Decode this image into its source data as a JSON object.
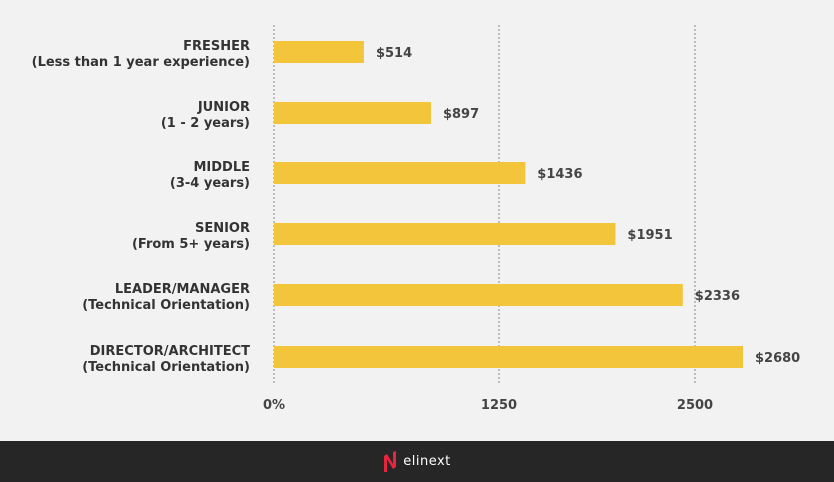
{
  "chart_data": {
    "type": "bar",
    "orientation": "horizontal",
    "title": "",
    "xlabel": "",
    "ylabel": "",
    "categories": [
      {
        "title": "FRESHER",
        "subtitle": "(Less than 1 year experience)"
      },
      {
        "title": "JUNIOR",
        "subtitle": "(1 - 2 years)"
      },
      {
        "title": "MIDDLE",
        "subtitle": "(3-4 years)"
      },
      {
        "title": "SENIOR",
        "subtitle": "(From 5+ years)"
      },
      {
        "title": "LEADER/MANAGER",
        "subtitle": "(Technical Orientation)"
      },
      {
        "title": "DIRECTOR/ARCHITECT",
        "subtitle": "(Technical Orientation)"
      }
    ],
    "values": [
      514,
      897,
      1436,
      1951,
      2336,
      2680
    ],
    "value_labels": [
      "$514",
      "$897",
      "$1436",
      "$1951",
      "$2336",
      "$2680"
    ],
    "xticks": [
      0,
      1250,
      2500
    ],
    "xtick_labels": [
      "0%",
      "1250",
      "2500"
    ],
    "xlim": [
      0,
      3200
    ],
    "grid": "vertical-dashed",
    "bar_color": "#f3c53b"
  },
  "footer": {
    "brand": "elinext",
    "brand_color": "#e8253f"
  }
}
